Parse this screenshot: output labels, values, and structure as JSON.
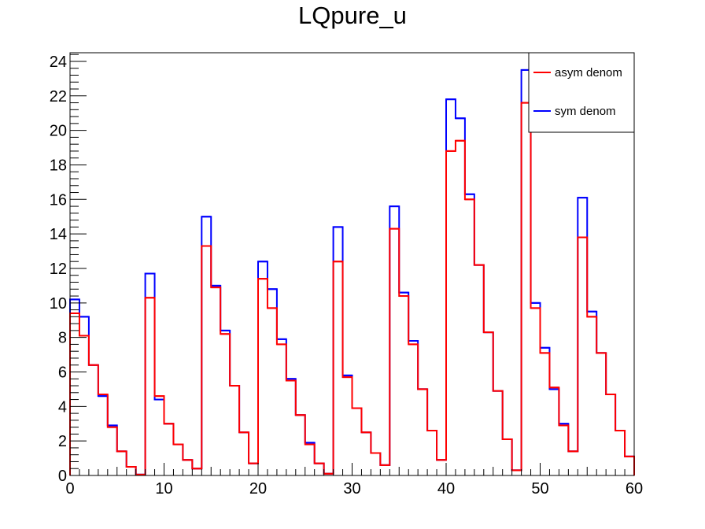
{
  "chart_data": {
    "type": "histogram",
    "title": "LQpure_u",
    "xlabel": "",
    "ylabel": "",
    "xlim": [
      0,
      60
    ],
    "ylim": [
      0,
      24.5
    ],
    "xticks": [
      0,
      10,
      20,
      30,
      40,
      50,
      60
    ],
    "xtick_labels": [
      "0",
      "10",
      "20",
      "30",
      "40",
      "50",
      "60"
    ],
    "yticks": [
      0,
      2,
      4,
      6,
      8,
      10,
      12,
      14,
      16,
      18,
      20,
      22,
      24
    ],
    "ytick_labels": [
      "0",
      "2",
      "4",
      "6",
      "8",
      "10",
      "12",
      "14",
      "16",
      "18",
      "20",
      "22",
      "24"
    ],
    "bin_width": 1,
    "legend": {
      "placement": "top-right"
    },
    "series": [
      {
        "name": "sym denom",
        "color": "#0000ff",
        "values": [
          10.2,
          9.2,
          6.4,
          4.6,
          2.9,
          1.4,
          0.5,
          0.05,
          11.7,
          4.4,
          3.0,
          1.8,
          0.9,
          0.4,
          15.0,
          11.0,
          8.4,
          5.2,
          2.5,
          0.7,
          12.4,
          10.8,
          7.9,
          5.6,
          3.5,
          1.9,
          0.7,
          0.1,
          14.4,
          5.8,
          3.9,
          2.5,
          1.3,
          0.6,
          15.6,
          10.6,
          7.8,
          5.0,
          2.6,
          0.9,
          21.8,
          20.7,
          16.3,
          12.2,
          8.3,
          4.9,
          2.1,
          0.3,
          23.5,
          10.0,
          7.4,
          5.0,
          3.0,
          1.4,
          16.1,
          9.5,
          7.1,
          4.7,
          2.6,
          1.1
        ]
      },
      {
        "name": "asym denom",
        "color": "#ff0000",
        "values": [
          9.4,
          8.1,
          6.4,
          4.7,
          2.8,
          1.4,
          0.5,
          0.05,
          10.3,
          4.6,
          3.0,
          1.8,
          0.9,
          0.4,
          13.3,
          10.9,
          8.2,
          5.2,
          2.5,
          0.7,
          11.4,
          9.7,
          7.6,
          5.5,
          3.5,
          1.8,
          0.7,
          0.1,
          12.4,
          5.7,
          3.9,
          2.5,
          1.3,
          0.6,
          14.3,
          10.4,
          7.6,
          5.0,
          2.6,
          0.9,
          18.8,
          19.4,
          16.0,
          12.2,
          8.3,
          4.9,
          2.1,
          0.3,
          21.6,
          9.7,
          7.1,
          5.1,
          2.9,
          1.4,
          13.8,
          9.2,
          7.1,
          4.7,
          2.6,
          1.1
        ]
      }
    ]
  }
}
